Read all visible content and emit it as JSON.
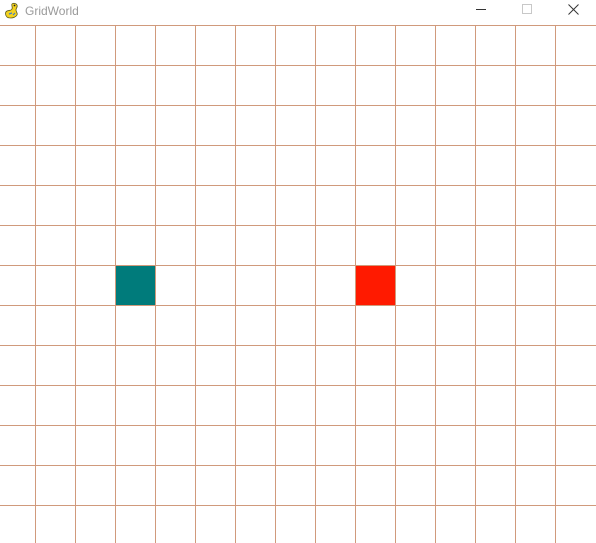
{
  "window": {
    "title": "GridWorld",
    "icon": "pygame-snake-icon",
    "controls": {
      "minimize_icon": "minimize-icon",
      "maximize_icon": "maximize-icon",
      "close_icon": "close-icon"
    }
  },
  "grid": {
    "columns": 15,
    "rows": 13,
    "line_color": "#d09a7c",
    "background": "#ffffff"
  },
  "entities": [
    {
      "kind": "agent",
      "col": 3,
      "row": 7,
      "color": "#007b7b"
    },
    {
      "kind": "goal",
      "col": 9,
      "row": 7,
      "color": "#ff1a00"
    }
  ]
}
